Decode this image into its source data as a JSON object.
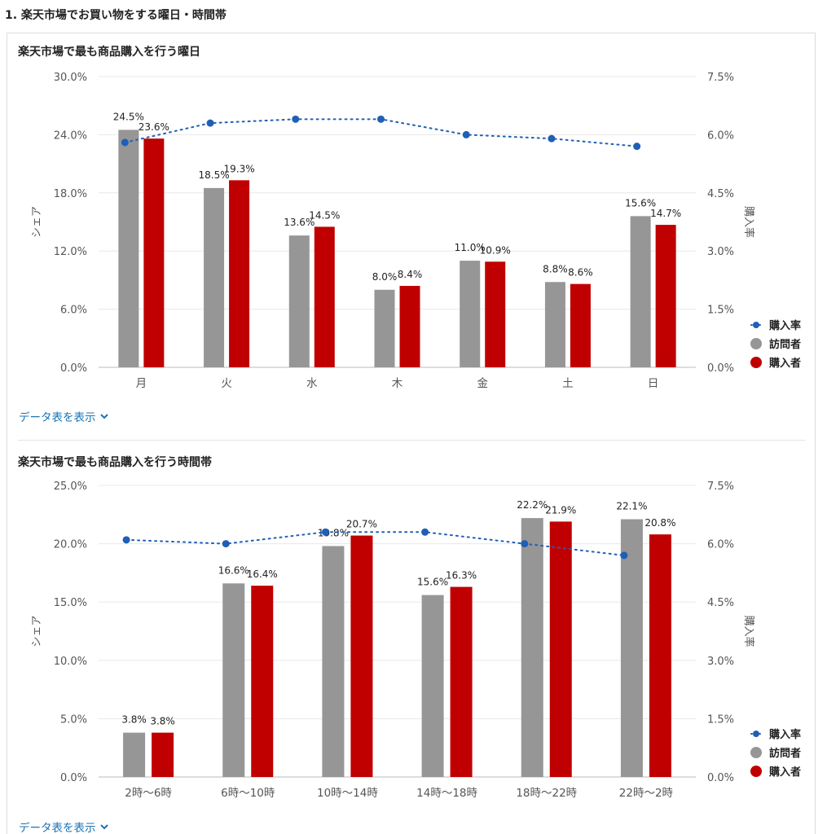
{
  "section_title": "1. 楽天市場でお買い物をする曜日・時間帯",
  "toggle_label": "データ表を表示",
  "colors": {
    "visitors": "#969696",
    "buyers": "#c00000",
    "rate": "#1f5fb6",
    "grid": "#e8e8e8",
    "axis_text": "#555555"
  },
  "legend": {
    "rate": "購入率",
    "visitors": "訪問者",
    "buyers": "購入者"
  },
  "chart_data": [
    {
      "type": "bar",
      "title": "楽天市場で最も商品購入を行う曜日",
      "ylabel": "シェア",
      "y2label": "購入率",
      "ylim": [
        0,
        30
      ],
      "y2lim": [
        0,
        7.5
      ],
      "yticks": [
        "0.0%",
        "6.0%",
        "12.0%",
        "18.0%",
        "24.0%",
        "30.0%"
      ],
      "y2ticks": [
        "0.0%",
        "1.5%",
        "3.0%",
        "4.5%",
        "6.0%",
        "7.5%"
      ],
      "categories": [
        "月",
        "火",
        "水",
        "木",
        "金",
        "土",
        "日"
      ],
      "series": [
        {
          "name": "訪問者",
          "values": [
            24.5,
            18.5,
            13.6,
            8.0,
            11.0,
            8.8,
            15.6
          ],
          "labels": [
            "24.5%",
            "18.5%",
            "13.6%",
            "8.0%",
            "11.0%",
            "8.8%",
            "15.6%"
          ]
        },
        {
          "name": "購入者",
          "values": [
            23.6,
            19.3,
            14.5,
            8.4,
            10.9,
            8.6,
            14.7
          ],
          "labels": [
            "23.6%",
            "19.3%",
            "14.5%",
            "8.4%",
            "10.9%",
            "8.6%",
            "14.7%"
          ]
        }
      ],
      "rate": {
        "name": "購入率",
        "values": [
          5.8,
          6.3,
          6.4,
          6.4,
          6.0,
          5.9,
          5.7
        ]
      },
      "legend_position": "right"
    },
    {
      "type": "bar",
      "title": "楽天市場で最も商品購入を行う時間帯",
      "ylabel": "シェア",
      "y2label": "購入率",
      "ylim": [
        0,
        25
      ],
      "y2lim": [
        0,
        7.5
      ],
      "yticks": [
        "0.0%",
        "5.0%",
        "10.0%",
        "15.0%",
        "20.0%",
        "25.0%"
      ],
      "y2ticks": [
        "0.0%",
        "1.5%",
        "3.0%",
        "4.5%",
        "6.0%",
        "7.5%"
      ],
      "categories": [
        "2時～6時",
        "6時～10時",
        "10時～14時",
        "14時～18時",
        "18時～22時",
        "22時～2時"
      ],
      "series": [
        {
          "name": "訪問者",
          "values": [
            3.8,
            16.6,
            19.8,
            15.6,
            22.2,
            22.1
          ],
          "labels": [
            "3.8%",
            "16.6%",
            "19.8%",
            "15.6%",
            "22.2%",
            "22.1%"
          ]
        },
        {
          "name": "購入者",
          "values": [
            3.8,
            16.4,
            20.7,
            16.3,
            21.9,
            20.8
          ],
          "labels": [
            "3.8%",
            "16.4%",
            "20.7%",
            "16.3%",
            "21.9%",
            "20.8%"
          ]
        }
      ],
      "rate": {
        "name": "購入率",
        "values": [
          6.1,
          6.0,
          6.3,
          6.3,
          6.0,
          5.7
        ]
      },
      "legend_position": "right"
    }
  ]
}
